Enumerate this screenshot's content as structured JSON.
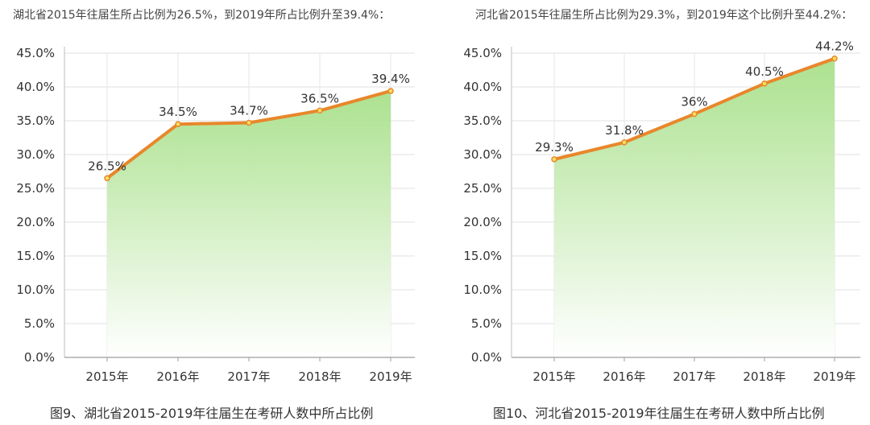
{
  "panels": [
    {
      "intro": "湖北省2015年往届生所占比例为26.5%，到2019年所占比例升至39.4%：",
      "caption": "图9、湖北省2015-2019年往届生在考研人数中所占比例"
    },
    {
      "intro": "河北省2015年往届生所占比例为29.3%，到2019年这个比例升至44.2%：",
      "caption": "图10、河北省2015-2019年往届生在考研人数中所占比例"
    }
  ],
  "chart_data": [
    {
      "type": "area",
      "categories": [
        "2015年",
        "2016年",
        "2017年",
        "2018年",
        "2019年"
      ],
      "values": [
        26.5,
        34.5,
        34.7,
        36.5,
        39.4
      ],
      "data_labels": [
        "26.5%",
        "34.5%",
        "34.7%",
        "36.5%",
        "39.4%"
      ],
      "y_ticks": [
        "0.0%",
        "5.0%",
        "10.0%",
        "15.0%",
        "20.0%",
        "25.0%",
        "30.0%",
        "35.0%",
        "40.0%",
        "45.0%"
      ],
      "ylim": [
        0,
        45
      ],
      "grid": true,
      "line_color": "#e8872b",
      "fill_color": "#a8e08a"
    },
    {
      "type": "area",
      "categories": [
        "2015年",
        "2016年",
        "2017年",
        "2018年",
        "2019年"
      ],
      "values": [
        29.3,
        31.8,
        36,
        40.5,
        44.2
      ],
      "data_labels": [
        "29.3%",
        "31.8%",
        "36%",
        "40.5%",
        "44.2%"
      ],
      "y_ticks": [
        "0.0%",
        "5.0%",
        "10.0%",
        "15.0%",
        "20.0%",
        "25.0%",
        "30.0%",
        "35.0%",
        "40.0%",
        "45.0%"
      ],
      "ylim": [
        0,
        45
      ],
      "grid": true,
      "line_color": "#e8872b",
      "fill_color": "#a8e08a"
    }
  ]
}
